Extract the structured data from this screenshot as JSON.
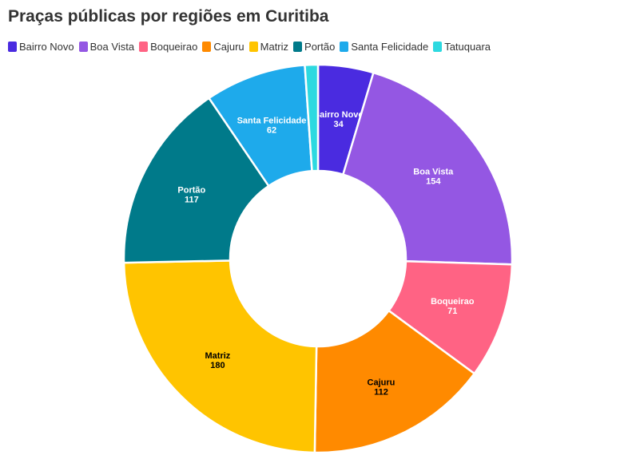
{
  "title": "Praças públicas por regiões em Curitiba",
  "chart_data": {
    "type": "pie",
    "variant": "donut",
    "title": "Praças públicas por regiões em Curitiba",
    "legend_position": "top-left",
    "categories": [
      "Bairro Novo",
      "Boa Vista",
      "Boqueirao",
      "Cajuru",
      "Matriz",
      "Portão",
      "Santa Felicidade",
      "Tatuquara"
    ],
    "values": [
      34,
      154,
      71,
      112,
      180,
      117,
      62,
      8
    ],
    "value_labels": [
      "34",
      "154",
      "71",
      "112",
      "180",
      "117",
      "62",
      ""
    ],
    "colors": [
      "#4a2be0",
      "#9457e3",
      "#ff6384",
      "#ff8a00",
      "#ffc400",
      "#007a8a",
      "#1eaaeb",
      "#2dd9e0"
    ],
    "label_colors": [
      "#ffffff",
      "#ffffff",
      "#ffffff",
      "#000000",
      "#000000",
      "#ffffff",
      "#ffffff",
      "#ffffff"
    ]
  }
}
